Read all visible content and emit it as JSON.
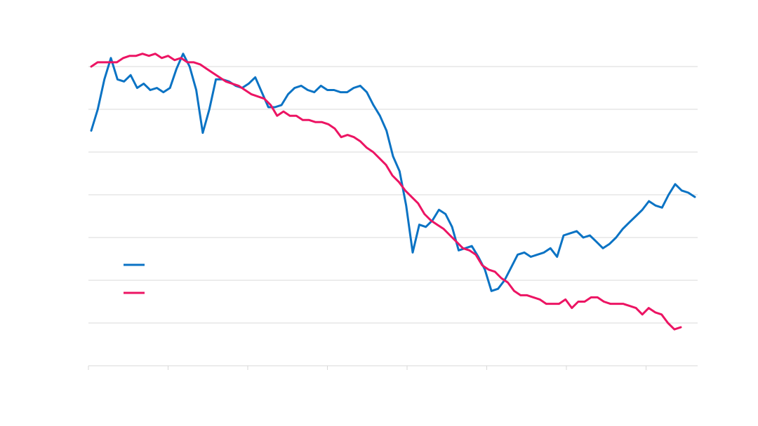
{
  "chart_data": {
    "type": "line",
    "title": "",
    "xlabel": "",
    "ylabel": "",
    "grid": "horizontal",
    "legend_position": "left",
    "colors": {
      "blue": "#0b73c4",
      "pink": "#ec1463",
      "grid": "#d9d9d9"
    },
    "series": [
      {
        "color": "#0b73c4",
        "values": [
          5.5,
          6.0,
          6.7,
          7.2,
          6.7,
          6.65,
          6.8,
          6.5,
          6.6,
          6.45,
          6.5,
          6.4,
          6.5,
          6.95,
          7.3,
          7.0,
          6.45,
          5.45,
          6.0,
          6.7,
          6.7,
          6.65,
          6.55,
          6.5,
          6.6,
          6.75,
          6.4,
          6.05,
          6.05,
          6.1,
          6.35,
          6.5,
          6.55,
          6.45,
          6.4,
          6.55,
          6.45,
          6.45,
          6.4,
          6.4,
          6.5,
          6.55,
          6.4,
          6.1,
          5.85,
          5.5,
          4.9,
          4.55,
          3.75,
          2.65,
          3.3,
          3.25,
          3.4,
          3.65,
          3.55,
          3.25,
          2.7,
          2.75,
          2.8,
          2.55,
          2.25,
          1.75,
          1.8,
          2.0,
          2.3,
          2.6,
          2.65,
          2.55,
          2.6,
          2.65,
          2.75,
          2.55,
          3.05,
          3.1,
          3.15,
          3.0,
          3.05,
          2.9,
          2.75,
          2.85,
          3.0,
          3.2,
          3.35,
          3.5,
          3.65,
          3.85,
          3.75,
          3.7,
          4.0,
          4.25,
          4.1,
          4.05,
          3.95
        ]
      },
      {
        "color": "#ec1463",
        "values": [
          7.0,
          7.1,
          7.1,
          7.1,
          7.1,
          7.2,
          7.25,
          7.25,
          7.3,
          7.25,
          7.3,
          7.2,
          7.25,
          7.15,
          7.2,
          7.1,
          7.1,
          7.05,
          6.95,
          6.85,
          6.75,
          6.65,
          6.6,
          6.55,
          6.45,
          6.35,
          6.3,
          6.25,
          6.1,
          5.85,
          5.95,
          5.85,
          5.85,
          5.75,
          5.75,
          5.7,
          5.7,
          5.65,
          5.55,
          5.35,
          5.4,
          5.35,
          5.25,
          5.1,
          5.0,
          4.85,
          4.7,
          4.45,
          4.3,
          4.1,
          3.95,
          3.8,
          3.55,
          3.4,
          3.3,
          3.2,
          3.05,
          2.9,
          2.75,
          2.7,
          2.6,
          2.35,
          2.25,
          2.2,
          2.05,
          1.95,
          1.75,
          1.65,
          1.65,
          1.6,
          1.55,
          1.45,
          1.45,
          1.45,
          1.55,
          1.35,
          1.5,
          1.5,
          1.6,
          1.6,
          1.5,
          1.45,
          1.45,
          1.45,
          1.4,
          1.35,
          1.2,
          1.35,
          1.25,
          1.2,
          1.0,
          0.85,
          0.9
        ]
      }
    ],
    "x": {
      "min": 0,
      "max": 92,
      "ticks": [
        0,
        12,
        24,
        36,
        48,
        60,
        72,
        84
      ]
    },
    "ylim": [
      0,
      7
    ],
    "yticks": [
      0,
      1,
      2,
      3,
      4,
      5,
      6,
      7
    ]
  }
}
